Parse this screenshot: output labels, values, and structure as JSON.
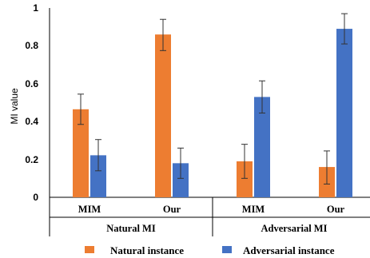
{
  "chart_data": {
    "type": "bar",
    "title": "",
    "ylabel": "MI value",
    "ylim": [
      0,
      1
    ],
    "yticks": [
      "0",
      "0.2",
      "0.4",
      "0.6",
      "0.8",
      "1"
    ],
    "grid": false,
    "legend_position": "bottom",
    "categories": [
      "MIM",
      "Our",
      "MIM",
      "Our"
    ],
    "groups": [
      {
        "label": "Natural MI",
        "categories": [
          "MIM",
          "Our"
        ]
      },
      {
        "label": "Adversarial MI",
        "categories": [
          "MIM",
          "Our"
        ]
      }
    ],
    "series": [
      {
        "name": "Natural instance",
        "color": "#ED7D31",
        "values": [
          0.465,
          0.86,
          0.19,
          0.16
        ],
        "error_low": [
          0.385,
          0.775,
          0.1,
          0.07
        ],
        "error_high": [
          0.545,
          0.94,
          0.28,
          0.245
        ]
      },
      {
        "name": "Adversarial instance",
        "color": "#4472C4",
        "values": [
          0.222,
          0.18,
          0.53,
          0.89
        ],
        "error_low": [
          0.14,
          0.1,
          0.445,
          0.81
        ],
        "error_high": [
          0.305,
          0.26,
          0.615,
          0.97
        ]
      }
    ]
  }
}
